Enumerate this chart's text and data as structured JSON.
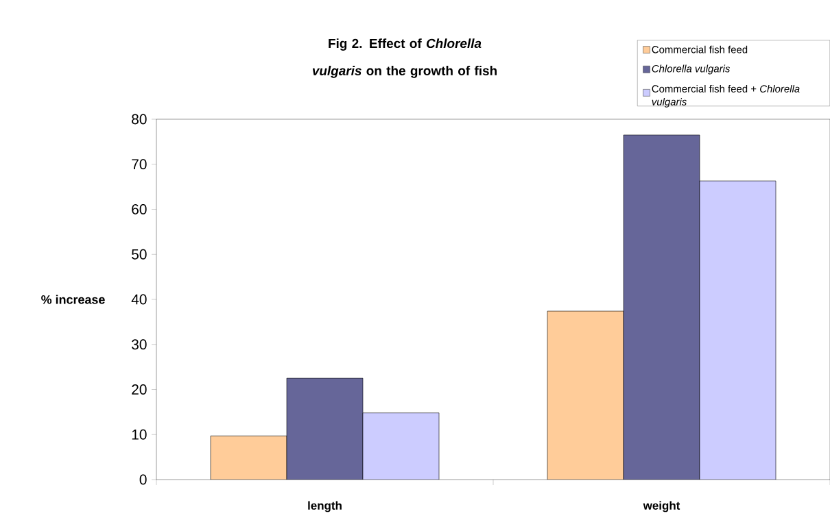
{
  "chart_data": {
    "type": "bar",
    "title": "Fig 2. Effect of *Chlorella vulgaris* on the growth of fish",
    "ylabel": "% increase",
    "categories": [
      "length",
      "weight"
    ],
    "series": [
      {
        "name": "Commercial fish feed",
        "color": "#ffcc99",
        "values": [
          9.7,
          37.4
        ]
      },
      {
        "name": "*Chlorella vulgaris*",
        "color": "#666699",
        "values": [
          22.5,
          76.5
        ]
      },
      {
        "name": "Commercial fish feed + *Chlorella vulgaris*",
        "color": "#ccccff",
        "values": [
          14.8,
          66.3
        ]
      }
    ],
    "ylim": [
      0,
      80
    ],
    "yticks": [
      0,
      10,
      20,
      30,
      40,
      50,
      60,
      70,
      80
    ],
    "grid": false,
    "legend": "top right"
  }
}
